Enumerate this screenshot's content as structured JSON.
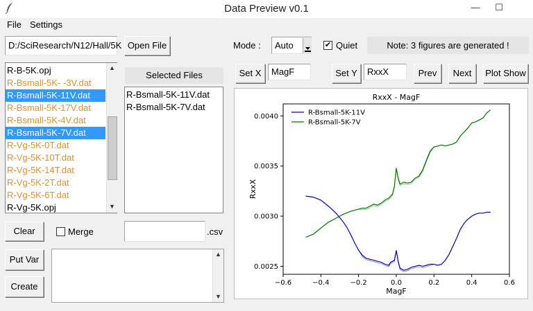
{
  "window": {
    "title": "Data Preview v0.1",
    "minimize": "—",
    "maximize": "☐"
  },
  "menu": {
    "file": "File",
    "settings": "Settings"
  },
  "path": {
    "value": "D:/SciResearch/N12/Hall/5K"
  },
  "buttons": {
    "open_file": "Open File",
    "set_x": "Set X",
    "set_y": "Set Y",
    "prev": "Prev",
    "next": "Next",
    "plot_show": "Plot Show",
    "clear": "Clear",
    "put_var": "Put Var",
    "create": "Create"
  },
  "mode": {
    "label": "Mode :",
    "value": "Auto"
  },
  "quiet": {
    "label": "Quiet",
    "checked": true,
    "mark": "✔"
  },
  "note": "Note: 3 figures are generated !",
  "x_var": "MagF",
  "y_var": "RxxX",
  "file_list": [
    {
      "name": "R-B-5K.opj",
      "color": "black",
      "selected": false
    },
    {
      "name": "R-Bsmall-5K- -3V.dat",
      "color": "orange",
      "selected": false
    },
    {
      "name": "R-Bsmall-5K-11V.dat",
      "color": "orange",
      "selected": true
    },
    {
      "name": "R-Bsmall-5K-17V.dat",
      "color": "orange",
      "selected": false
    },
    {
      "name": "R-Bsmall-5K-4V.dat",
      "color": "orange",
      "selected": false
    },
    {
      "name": "R-Bsmall-5K-7V.dat",
      "color": "orange",
      "selected": true
    },
    {
      "name": "R-Vg-5K-0T.dat",
      "color": "orange",
      "selected": false
    },
    {
      "name": "R-Vg-5K-10T.dat",
      "color": "orange",
      "selected": false
    },
    {
      "name": "R-Vg-5K-14T.dat",
      "color": "orange",
      "selected": false
    },
    {
      "name": "R-Vg-5K-2T.dat",
      "color": "orange",
      "selected": false
    },
    {
      "name": "R-Vg-5K-6T.dat",
      "color": "orange",
      "selected": false
    },
    {
      "name": "R-Vg-5K.opj",
      "color": "black",
      "selected": false
    }
  ],
  "selected_files": {
    "header": "Selected Files",
    "items": [
      "R-Bsmall-5K-11V.dat",
      "R-Bsmall-5K-7V.dat"
    ]
  },
  "merge": {
    "label": "Merge",
    "checked": false
  },
  "csv_suffix": ".csv",
  "colors": {
    "selection": "#3399ff",
    "file_orange": "#e0922d",
    "series_blue": "#0000cc",
    "series_green": "#007700"
  },
  "chart_data": {
    "type": "line",
    "title": "RxxX - MagF",
    "xlabel": "MagF",
    "ylabel": "RxxX",
    "xlim": [
      -0.6,
      0.6
    ],
    "ylim": [
      0.00242,
      0.00412
    ],
    "xticks": [
      -0.6,
      -0.4,
      -0.2,
      0.0,
      0.2,
      0.4,
      0.6
    ],
    "xtick_labels": [
      "−0.6",
      "−0.4",
      "−0.2",
      "0.0",
      "0.2",
      "0.4",
      "0.6"
    ],
    "yticks": [
      0.0025,
      0.003,
      0.0035,
      0.004
    ],
    "ytick_labels": [
      "0.0025",
      "0.0030",
      "0.0035",
      "0.0040"
    ],
    "legend_position": "upper-left",
    "series": [
      {
        "name": "R-Bsmall-5K-11V",
        "color": "#0000cc",
        "x": [
          -0.48,
          -0.44,
          -0.4,
          -0.36,
          -0.32,
          -0.28,
          -0.26,
          -0.24,
          -0.22,
          -0.2,
          -0.18,
          -0.16,
          -0.14,
          -0.12,
          -0.1,
          -0.08,
          -0.06,
          -0.04,
          -0.03,
          -0.02,
          -0.01,
          0.0,
          0.01,
          0.02,
          0.04,
          0.06,
          0.08,
          0.1,
          0.12,
          0.14,
          0.16,
          0.18,
          0.2,
          0.22,
          0.24,
          0.26,
          0.28,
          0.3,
          0.32,
          0.34,
          0.36,
          0.38,
          0.4,
          0.42,
          0.44,
          0.46,
          0.48,
          0.5
        ],
        "y": [
          0.0032,
          0.00319,
          0.00316,
          0.0031,
          0.00303,
          0.00294,
          0.00288,
          0.00281,
          0.00273,
          0.00266,
          0.00261,
          0.00258,
          0.00257,
          0.00256,
          0.00255,
          0.00254,
          0.00252,
          0.00251,
          0.00254,
          0.00255,
          0.00256,
          0.00266,
          0.00255,
          0.00248,
          0.00246,
          0.00247,
          0.00249,
          0.0025,
          0.00251,
          0.0025,
          0.00251,
          0.00252,
          0.00252,
          0.00251,
          0.00252,
          0.00256,
          0.00262,
          0.0027,
          0.00278,
          0.00287,
          0.00293,
          0.00297,
          0.003,
          0.00302,
          0.00303,
          0.00303,
          0.00304,
          0.00304
        ]
      },
      {
        "name": "R-Bsmall-5K-7V",
        "color": "#007700",
        "x": [
          -0.48,
          -0.44,
          -0.4,
          -0.36,
          -0.32,
          -0.28,
          -0.24,
          -0.2,
          -0.18,
          -0.16,
          -0.14,
          -0.12,
          -0.1,
          -0.08,
          -0.06,
          -0.04,
          -0.03,
          -0.02,
          -0.01,
          0.0,
          0.01,
          0.02,
          0.04,
          0.06,
          0.08,
          0.1,
          0.12,
          0.14,
          0.16,
          0.18,
          0.2,
          0.22,
          0.24,
          0.26,
          0.28,
          0.3,
          0.32,
          0.34,
          0.36,
          0.38,
          0.4,
          0.42,
          0.44,
          0.46,
          0.48,
          0.5
        ],
        "y": [
          0.00279,
          0.00282,
          0.00288,
          0.00294,
          0.00298,
          0.00302,
          0.00305,
          0.00307,
          0.00308,
          0.00308,
          0.0031,
          0.00312,
          0.00311,
          0.00313,
          0.00316,
          0.00318,
          0.0032,
          0.00322,
          0.0033,
          0.00348,
          0.00338,
          0.00332,
          0.00334,
          0.00333,
          0.00334,
          0.00338,
          0.0034,
          0.00346,
          0.00356,
          0.00365,
          0.00369,
          0.0037,
          0.00371,
          0.0037,
          0.00371,
          0.00372,
          0.00374,
          0.0038,
          0.00384,
          0.00388,
          0.00393,
          0.00394,
          0.00396,
          0.00398,
          0.00403,
          0.00406
        ]
      }
    ]
  }
}
